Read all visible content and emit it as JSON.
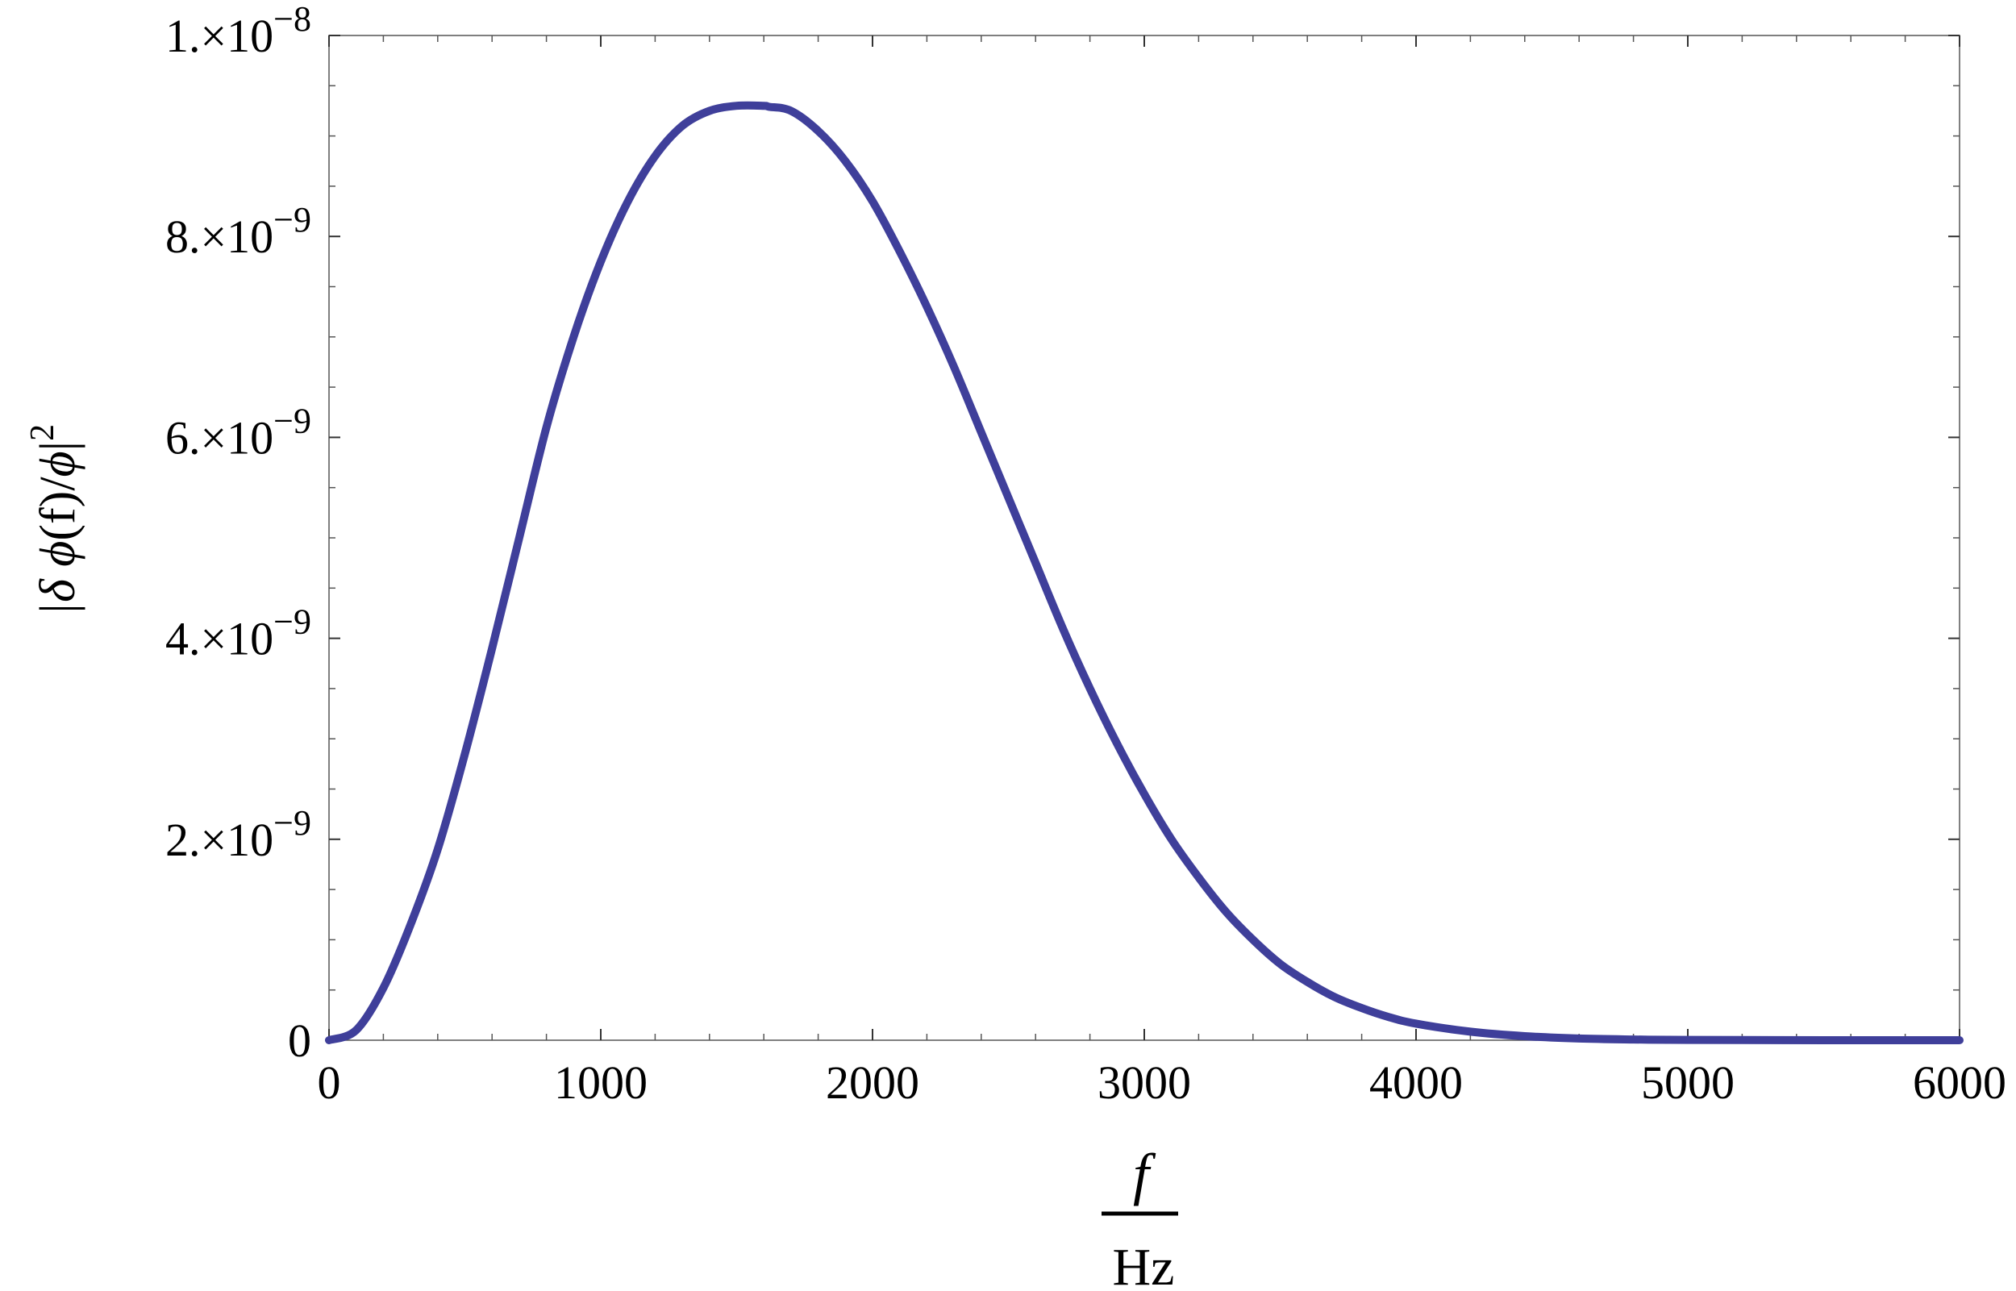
{
  "chart_data": {
    "type": "line",
    "title": "",
    "xlabel": {
      "numerator": "f",
      "denominator": "Hz"
    },
    "ylabel": {
      "prefix": "|δ ",
      "phi1": "ϕ",
      "mid": "(f)/",
      "phi2": "ϕ",
      "suffix": "|",
      "exponent": "2"
    },
    "xlim": [
      0,
      6000
    ],
    "ylim": [
      0,
      1e-08
    ],
    "grid": false,
    "x_ticks": [
      {
        "value": 0,
        "label": "0"
      },
      {
        "value": 1000,
        "label": "1000"
      },
      {
        "value": 2000,
        "label": "2000"
      },
      {
        "value": 3000,
        "label": "3000"
      },
      {
        "value": 4000,
        "label": "4000"
      },
      {
        "value": 5000,
        "label": "5000"
      },
      {
        "value": 6000,
        "label": "6000"
      }
    ],
    "y_ticks": [
      {
        "value": 0,
        "mantissa": "0",
        "exponent": ""
      },
      {
        "value": 2e-09,
        "mantissa": "2.×10",
        "exponent": "−9"
      },
      {
        "value": 4e-09,
        "mantissa": "4.×10",
        "exponent": "−9"
      },
      {
        "value": 6e-09,
        "mantissa": "6.×10",
        "exponent": "−9"
      },
      {
        "value": 8e-09,
        "mantissa": "8.×10",
        "exponent": "−9"
      },
      {
        "value": 1e-08,
        "mantissa": "1.×10",
        "exponent": "−8"
      }
    ],
    "series": [
      {
        "color": "#3f3f9a",
        "x": [
          0,
          100,
          200,
          300,
          400,
          500,
          600,
          700,
          800,
          900,
          1000,
          1100,
          1200,
          1300,
          1400,
          1500,
          1600,
          1620,
          1700,
          1800,
          1900,
          2000,
          2100,
          2200,
          2300,
          2400,
          2500,
          2600,
          2700,
          2800,
          2900,
          3000,
          3100,
          3200,
          3300,
          3400,
          3500,
          3600,
          3700,
          3800,
          3900,
          4000,
          4200,
          4400,
          4600,
          4800,
          5000,
          5500,
          6000
        ],
        "y": [
          0,
          1e-10,
          5.2e-10,
          1.15e-09,
          1.9e-09,
          2.85e-09,
          3.9e-09,
          5e-09,
          6.1e-09,
          7e-09,
          7.75e-09,
          8.35e-09,
          8.8e-09,
          9.1e-09,
          9.25e-09,
          9.3e-09,
          9.3e-09,
          9.29e-09,
          9.25e-09,
          9.05e-09,
          8.75e-09,
          8.35e-09,
          7.85e-09,
          7.3e-09,
          6.7e-09,
          6.05e-09,
          5.4e-09,
          4.75e-09,
          4.1e-09,
          3.5e-09,
          2.95e-09,
          2.45e-09,
          2e-09,
          1.62e-09,
          1.28e-09,
          1e-09,
          7.6e-10,
          5.8e-10,
          4.3e-10,
          3.2e-10,
          2.3e-10,
          1.65e-10,
          8.5e-11,
          4e-11,
          1.7e-11,
          7e-12,
          3e-12,
          0,
          0
        ]
      }
    ]
  }
}
